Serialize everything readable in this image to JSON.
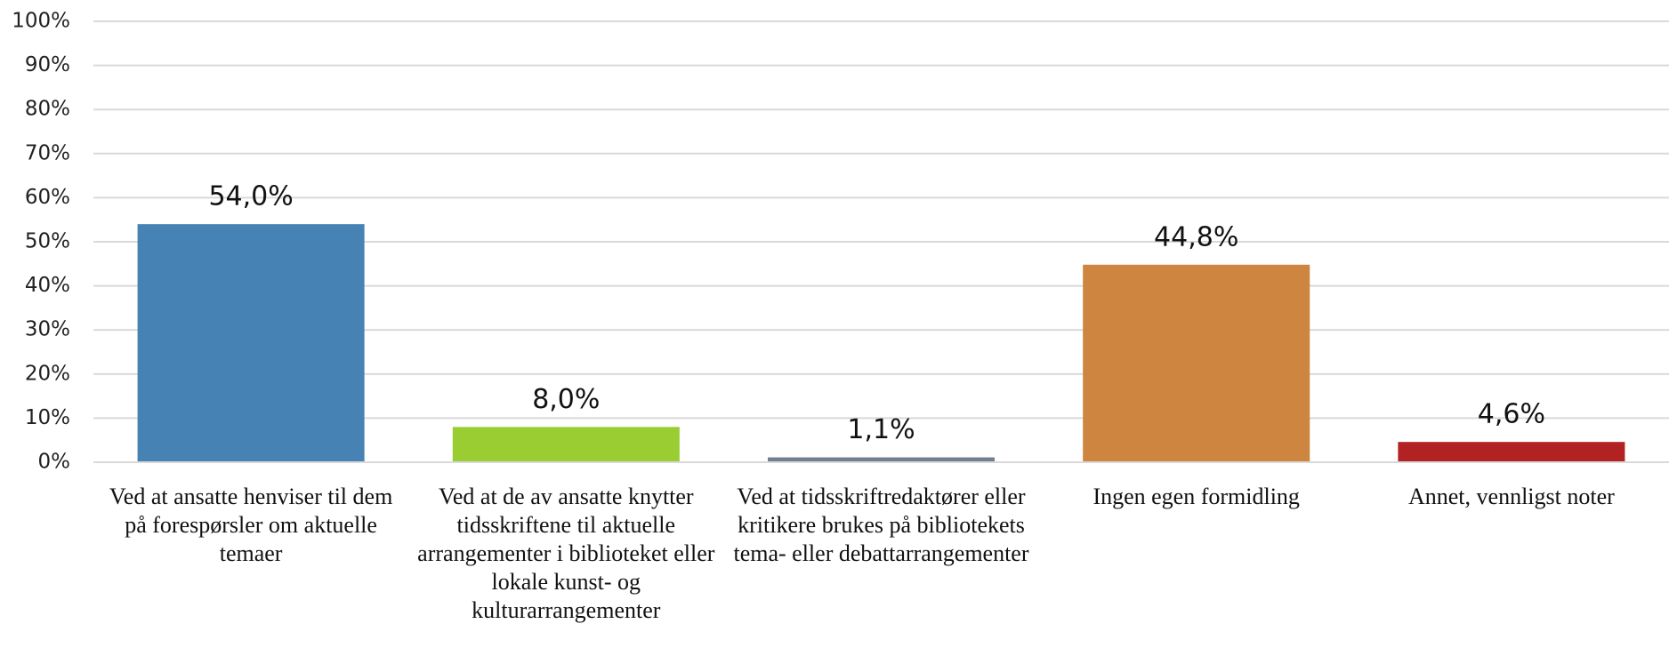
{
  "chart_data": {
    "type": "bar",
    "categories": [
      "Ved at ansatte henviser til dem på forespørsler om aktuelle temaer",
      "Ved at de av ansatte knytter tidsskriftene til aktuelle arrangementer i biblioteket eller lokale kunst- og kulturarrangementer",
      "Ved at tidsskriftredaktører eller kritikere brukes på bibliotekets tema- eller debattarrangementer",
      "Ingen egen formidling",
      "Annet, vennligst noter"
    ],
    "values": [
      54.0,
      8.0,
      1.1,
      44.8,
      4.6
    ],
    "value_labels": [
      "54,0%",
      "8,0%",
      "1,1%",
      "44,8%",
      "4,6%"
    ],
    "colors": [
      "#4682b4",
      "#9acd32",
      "#708090",
      "#cd853f",
      "#b22222"
    ],
    "ylim": [
      0,
      100
    ],
    "yticks": [
      {
        "value": 0,
        "label": "0%"
      },
      {
        "value": 10,
        "label": "10%"
      },
      {
        "value": 20,
        "label": "20%"
      },
      {
        "value": 30,
        "label": "30%"
      },
      {
        "value": 40,
        "label": "40%"
      },
      {
        "value": 50,
        "label": "50%"
      },
      {
        "value": 60,
        "label": "60%"
      },
      {
        "value": 70,
        "label": "70%"
      },
      {
        "value": 80,
        "label": "80%"
      },
      {
        "value": 90,
        "label": "90%"
      },
      {
        "value": 100,
        "label": "100%"
      }
    ],
    "grid": true
  }
}
